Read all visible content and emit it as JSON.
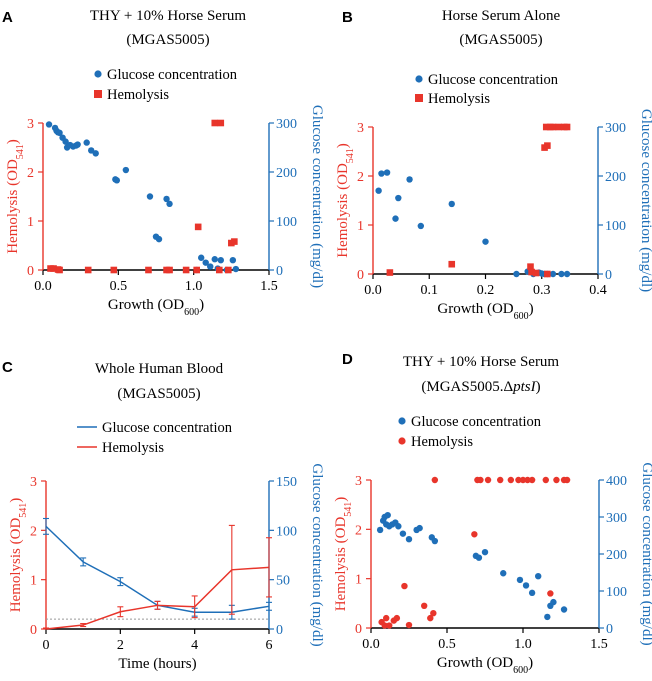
{
  "colors": {
    "glucose": "#1f6fb8",
    "hemolysis": "#e8352b",
    "axis": "#000000",
    "baseline": "#999999"
  },
  "chart_data": [
    {
      "panel": "A",
      "type": "scatter",
      "title": "THY + 10% Horse Serum",
      "subtitle": "(MGAS5005)",
      "xlabel": "Growth (OD",
      "xlabel_sub": "600",
      "xlabel_end": ")",
      "ylabel_left": "Hemolysis (OD",
      "ylabel_left_sub": "541",
      "ylabel_left_end": ")",
      "ylabel_right": "Glucose concentration (mg/dl)",
      "xlim": [
        0,
        1.5
      ],
      "xticks": [
        0,
        0.5,
        1.0,
        1.5
      ],
      "xtick_labels": [
        "0.0",
        "0.5",
        "1.0",
        "1.5"
      ],
      "ylim_left": [
        0,
        3
      ],
      "yticks_left": [
        0,
        1,
        2,
        3
      ],
      "ytick_labels_left": [
        "0",
        "1",
        "2",
        "3"
      ],
      "ylim_right": [
        0,
        300
      ],
      "yticks_right": [
        0,
        100,
        200,
        300
      ],
      "ytick_labels_right": [
        "0",
        "100",
        "200",
        "300"
      ],
      "legend": [
        "Glucose concentration",
        "Hemolysis"
      ],
      "series": [
        {
          "name": "Glucose concentration",
          "axis": "right",
          "marker": "circle",
          "x": [
            0.04,
            0.08,
            0.09,
            0.1,
            0.11,
            0.13,
            0.15,
            0.16,
            0.18,
            0.2,
            0.22,
            0.23,
            0.29,
            0.32,
            0.35,
            0.48,
            0.49,
            0.55,
            0.71,
            0.75,
            0.77,
            0.82,
            0.84,
            1.02,
            1.05,
            1.08,
            1.11,
            1.14,
            1.16,
            1.18,
            1.22,
            1.26,
            1.28
          ],
          "y": [
            297,
            290,
            284,
            281,
            280,
            270,
            262,
            250,
            255,
            252,
            254,
            256,
            260,
            244,
            238,
            185,
            183,
            204,
            150,
            68,
            63,
            145,
            135,
            0,
            25,
            15,
            7,
            22,
            3,
            20,
            0,
            20,
            2
          ]
        },
        {
          "name": "Hemolysis",
          "axis": "left",
          "marker": "square",
          "x": [
            0.05,
            0.07,
            0.1,
            0.11,
            0.3,
            0.47,
            0.7,
            0.82,
            0.84,
            0.95,
            1.02,
            1.03,
            1.14,
            1.17,
            1.18,
            1.23,
            1.25,
            1.27
          ],
          "y": [
            0.03,
            0.03,
            0.01,
            0.0,
            0.0,
            0.0,
            0.0,
            0.0,
            0.0,
            0.0,
            0.0,
            0.88,
            3.0,
            0.0,
            3.0,
            0.0,
            0.55,
            0.58
          ]
        }
      ]
    },
    {
      "panel": "B",
      "type": "scatter",
      "title": "Horse Serum Alone",
      "subtitle": "(MGAS5005)",
      "xlabel": "Growth (OD",
      "xlabel_sub": "600",
      "xlabel_end": ")",
      "ylabel_left": "Hemolysis (OD",
      "ylabel_left_sub": "541",
      "ylabel_left_end": ")",
      "ylabel_right": "Glucose concentration (mg/dl)",
      "xlim": [
        0,
        0.4
      ],
      "xticks": [
        0,
        0.1,
        0.2,
        0.3,
        0.4
      ],
      "xtick_labels": [
        "0.0",
        "0.1",
        "0.2",
        "0.3",
        "0.4"
      ],
      "ylim_left": [
        0,
        3
      ],
      "yticks_left": [
        0,
        1,
        2,
        3
      ],
      "ytick_labels_left": [
        "0",
        "1",
        "2",
        "3"
      ],
      "ylim_right": [
        0,
        300
      ],
      "yticks_right": [
        0,
        100,
        200,
        300
      ],
      "ytick_labels_right": [
        "0",
        "100",
        "200",
        "300"
      ],
      "legend": [
        "Glucose concentration",
        "Hemolysis"
      ],
      "series": [
        {
          "name": "Glucose concentration",
          "axis": "right",
          "marker": "circle",
          "x": [
            0.01,
            0.015,
            0.025,
            0.04,
            0.045,
            0.065,
            0.085,
            0.14,
            0.2,
            0.255,
            0.275,
            0.285,
            0.295,
            0.3,
            0.305,
            0.31,
            0.32,
            0.335,
            0.345
          ],
          "y": [
            170,
            205,
            207,
            113,
            155,
            193,
            98,
            143,
            66,
            0,
            5,
            0,
            3,
            1,
            0,
            0,
            0,
            0,
            0
          ]
        },
        {
          "name": "Hemolysis",
          "axis": "left",
          "marker": "square",
          "x": [
            0.03,
            0.14,
            0.28,
            0.282,
            0.29,
            0.305,
            0.31,
            0.32,
            0.315,
            0.308,
            0.31,
            0.33,
            0.34,
            0.345
          ],
          "y": [
            0.03,
            0.2,
            0.15,
            0.04,
            0.02,
            2.58,
            2.62,
            3.0,
            3.0,
            3.0,
            0.0,
            3.0,
            3.0,
            3.0
          ]
        }
      ]
    },
    {
      "panel": "C",
      "type": "line",
      "title": "Whole Human Blood",
      "subtitle": "(MGAS5005)",
      "xlabel": "Time (hours)",
      "ylabel_left": "Hemolysis (OD",
      "ylabel_left_sub": "541",
      "ylabel_left_end": ")",
      "ylabel_right": "Glucose concentration (mg/dl)",
      "xlim": [
        0,
        6
      ],
      "xticks": [
        0,
        2,
        4,
        6
      ],
      "xtick_labels": [
        "0",
        "2",
        "4",
        "6"
      ],
      "ylim_left": [
        0,
        3
      ],
      "yticks_left": [
        0,
        1,
        2,
        3
      ],
      "ytick_labels_left": [
        "0",
        "1",
        "2",
        "3"
      ],
      "ylim_right": [
        0,
        150
      ],
      "yticks_right": [
        0,
        50,
        100,
        150
      ],
      "ytick_labels_right": [
        "0",
        "50",
        "100",
        "150"
      ],
      "legend": [
        "Glucose concentration",
        "Hemolysis"
      ],
      "baseline_left": 0.2,
      "series": [
        {
          "name": "Glucose concentration",
          "axis": "right",
          "x": [
            0,
            1,
            2,
            3,
            4,
            5,
            6
          ],
          "y": [
            104,
            68,
            48,
            24,
            17,
            17,
            23
          ],
          "err": [
            8,
            4,
            4,
            4,
            4,
            7,
            4
          ]
        },
        {
          "name": "Hemolysis",
          "axis": "left",
          "x": [
            0,
            1,
            2,
            3,
            4,
            5,
            6
          ],
          "y": [
            0.0,
            0.08,
            0.35,
            0.48,
            0.45,
            1.2,
            1.25
          ],
          "err": [
            0.02,
            0.03,
            0.1,
            0.08,
            0.22,
            0.9,
            0.6
          ]
        }
      ]
    },
    {
      "panel": "D",
      "type": "scatter",
      "title": "THY + 10% Horse Serum",
      "subtitle_prefix": "(MGAS5005.Δ",
      "subtitle_italic": "ptsI",
      "subtitle_suffix": ")",
      "xlabel": "Growth (OD",
      "xlabel_sub": "600",
      "xlabel_end": ")",
      "ylabel_left": "Hemolysis (OD",
      "ylabel_left_sub": "541",
      "ylabel_left_end": ")",
      "ylabel_right": "Glucose concentration (mg/dl)",
      "xlim": [
        0,
        1.5
      ],
      "xticks": [
        0,
        0.5,
        1.0,
        1.5
      ],
      "xtick_labels": [
        "0.0",
        "0.5",
        "1.0",
        "1.5"
      ],
      "ylim_left": [
        0,
        3
      ],
      "yticks_left": [
        0,
        1,
        2,
        3
      ],
      "ytick_labels_left": [
        "0",
        "1",
        "2",
        "3"
      ],
      "ylim_right": [
        0,
        400
      ],
      "yticks_right": [
        0,
        100,
        200,
        300,
        400
      ],
      "ytick_labels_right": [
        "0",
        "100",
        "200",
        "300",
        "400"
      ],
      "legend": [
        "Glucose concentration",
        "Hemolysis"
      ],
      "series": [
        {
          "name": "Glucose concentration",
          "axis": "right",
          "marker": "circle",
          "x": [
            0.06,
            0.08,
            0.09,
            0.1,
            0.11,
            0.12,
            0.14,
            0.16,
            0.18,
            0.21,
            0.25,
            0.3,
            0.32,
            0.4,
            0.42,
            0.69,
            0.71,
            0.75,
            0.87,
            0.98,
            1.02,
            1.06,
            1.1,
            1.16,
            1.18,
            1.2,
            1.27
          ],
          "y": [
            265,
            290,
            300,
            280,
            305,
            275,
            280,
            285,
            275,
            255,
            240,
            265,
            270,
            245,
            235,
            195,
            190,
            205,
            148,
            130,
            115,
            95,
            140,
            30,
            60,
            70,
            50
          ]
        },
        {
          "name": "Hemolysis",
          "axis": "left",
          "marker": "circle",
          "x": [
            0.07,
            0.09,
            0.1,
            0.12,
            0.15,
            0.17,
            0.22,
            0.25,
            0.35,
            0.39,
            0.41,
            0.42,
            0.68,
            0.7,
            0.72,
            0.77,
            0.85,
            0.92,
            0.97,
            1.0,
            1.03,
            1.06,
            1.15,
            1.18,
            1.22,
            1.27,
            1.29
          ],
          "y": [
            0.12,
            0.05,
            0.2,
            0.05,
            0.15,
            0.2,
            0.85,
            0.06,
            0.45,
            0.2,
            0.3,
            3.0,
            1.9,
            3.0,
            3.0,
            3.0,
            3.0,
            3.0,
            3.0,
            3.0,
            3.0,
            3.0,
            3.0,
            0.7,
            3.0,
            3.0,
            3.0
          ]
        }
      ]
    }
  ]
}
